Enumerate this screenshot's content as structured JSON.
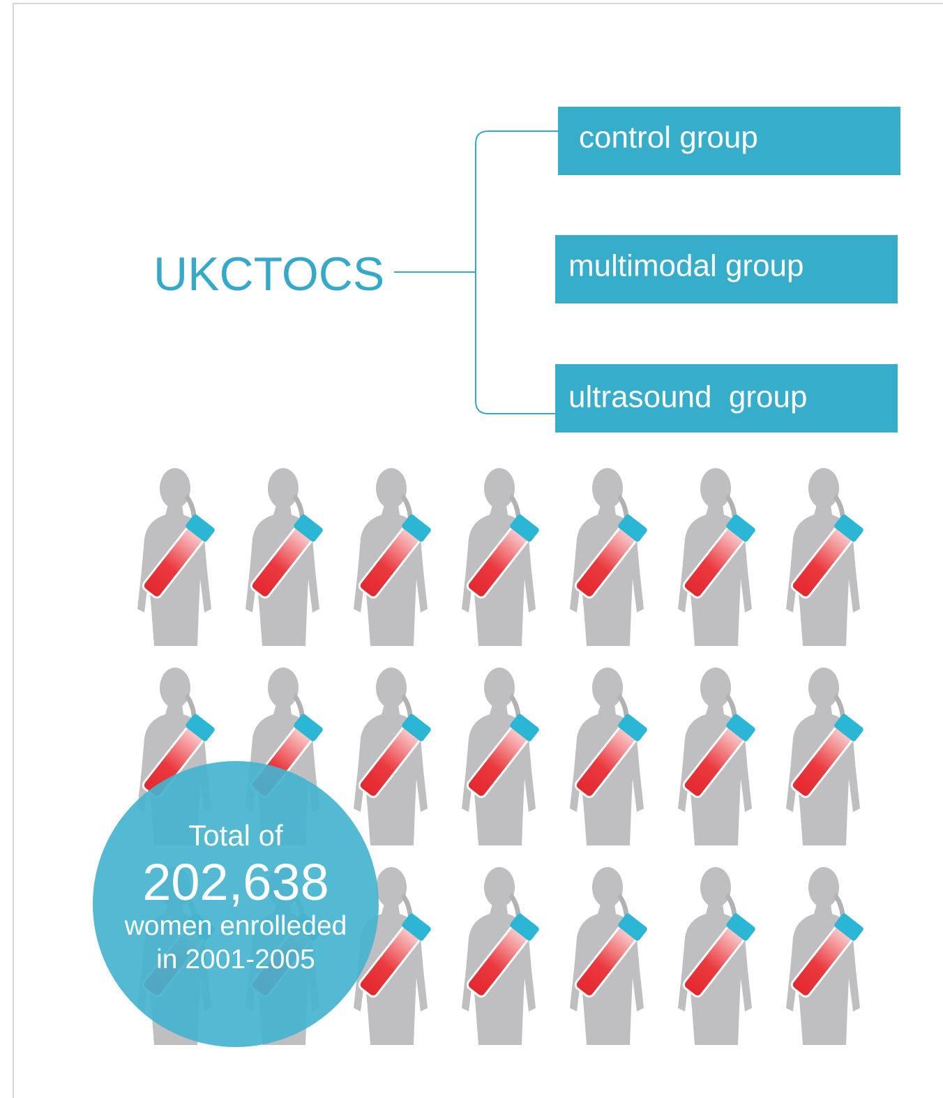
{
  "title": "UKCTOCS",
  "groups": [
    "control group",
    "multimodal group",
    "ultrasound  group"
  ],
  "total": {
    "line1": "Total of",
    "number": "202,638",
    "line3": "women enrolleded",
    "line4": "in 2001-2005"
  }
}
